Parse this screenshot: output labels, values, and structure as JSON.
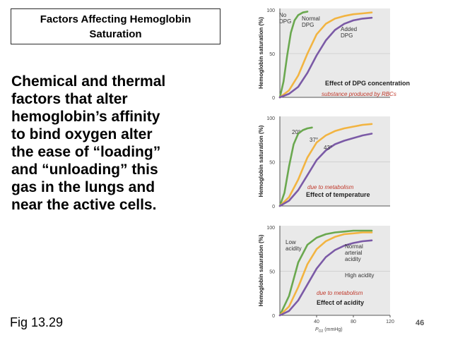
{
  "slide": {
    "title_line1": "Factors Affecting Hemoglobin",
    "title_line2": "Saturation",
    "body_lines": [
      "Chemical and thermal",
      "factors that alter",
      "hemoglobin’s affinity",
      "to bind oxygen alter",
      "the ease of “loading”",
      "and “unloading” this",
      "gas in the lungs and",
      "near the active cells."
    ],
    "figure_label": "Fig 13.29",
    "page_number": "46"
  },
  "colors": {
    "green": "#6aa84f",
    "orange": "#f2b441",
    "purple": "#7b5aa6",
    "panel_bg": "#e9e9e9",
    "note_red": "#c0392b"
  },
  "chart_data": [
    {
      "type": "line",
      "ylabel": "Hemoglobin saturation (%)",
      "yticks": [
        "100",
        "50",
        "0"
      ],
      "ylim": [
        0,
        100
      ],
      "xlim": [
        0,
        120
      ],
      "caption": "Effect of DPG concentration",
      "note": "substance produced by RBCs",
      "series": [
        {
          "name": "No DPG",
          "color": "#6aa84f",
          "x": [
            0,
            4,
            8,
            12,
            16,
            20,
            25,
            30
          ],
          "y": [
            0,
            18,
            48,
            74,
            88,
            94,
            97,
            98
          ]
        },
        {
          "name": "Normal DPG",
          "color": "#f2b441",
          "x": [
            0,
            10,
            20,
            30,
            40,
            50,
            60,
            70,
            80,
            90,
            100
          ],
          "y": [
            0,
            8,
            25,
            50,
            72,
            84,
            90,
            93,
            95,
            96,
            97
          ]
        },
        {
          "name": "Added DPG",
          "color": "#7b5aa6",
          "x": [
            0,
            10,
            20,
            30,
            40,
            50,
            60,
            70,
            80,
            90,
            100
          ],
          "y": [
            0,
            4,
            12,
            28,
            48,
            65,
            77,
            84,
            88,
            90,
            91
          ]
        }
      ],
      "labels": [
        "No DPG",
        "Normal DPG",
        "Added DPG"
      ]
    },
    {
      "type": "line",
      "ylabel": "Hemoglobin saturation (%)",
      "yticks": [
        "100",
        "50",
        "0"
      ],
      "ylim": [
        0,
        100
      ],
      "xlim": [
        0,
        120
      ],
      "caption": "Effect of temperature",
      "note": "due to metabolism",
      "series": [
        {
          "name": "20°",
          "color": "#6aa84f",
          "x": [
            0,
            5,
            10,
            15,
            20,
            25,
            30,
            35
          ],
          "y": [
            0,
            15,
            45,
            70,
            82,
            86,
            88,
            89
          ]
        },
        {
          "name": "37°",
          "color": "#f2b441",
          "x": [
            0,
            10,
            20,
            30,
            40,
            50,
            60,
            70,
            80,
            90,
            100
          ],
          "y": [
            0,
            10,
            30,
            55,
            72,
            80,
            85,
            88,
            90,
            92,
            93
          ]
        },
        {
          "name": "43°",
          "color": "#7b5aa6",
          "x": [
            0,
            10,
            20,
            30,
            40,
            50,
            60,
            70,
            80,
            90,
            100
          ],
          "y": [
            0,
            6,
            18,
            35,
            52,
            63,
            70,
            74,
            77,
            80,
            82
          ]
        }
      ],
      "labels": [
        "20°",
        "37°",
        "43°"
      ]
    },
    {
      "type": "line",
      "ylabel": "Hemoglobin saturation (%)",
      "yticks": [
        "100",
        "50",
        "0"
      ],
      "ylim": [
        0,
        100
      ],
      "xlim": [
        0,
        120
      ],
      "xticks": [
        "40",
        "80",
        "120"
      ],
      "xlabel": "P",
      "xlabel_sub": "O2",
      "xlabel_unit": "(mmHg)",
      "caption": "Effect of acidity",
      "note": "due to metabolism",
      "series": [
        {
          "name": "Low acidity",
          "color": "#6aa84f",
          "x": [
            0,
            10,
            20,
            30,
            40,
            50,
            60,
            70,
            80,
            90,
            100
          ],
          "y": [
            0,
            22,
            60,
            80,
            88,
            92,
            94,
            95,
            96,
            96,
            96
          ]
        },
        {
          "name": "Normal arterial acidity",
          "color": "#f2b441",
          "x": [
            0,
            10,
            20,
            30,
            40,
            50,
            60,
            70,
            80,
            90,
            100
          ],
          "y": [
            0,
            10,
            32,
            58,
            75,
            84,
            89,
            92,
            93,
            94,
            94
          ]
        },
        {
          "name": "High acidity",
          "color": "#7b5aa6",
          "x": [
            0,
            10,
            20,
            30,
            40,
            50,
            60,
            70,
            80,
            90,
            100
          ],
          "y": [
            0,
            5,
            17,
            35,
            53,
            66,
            74,
            79,
            82,
            84,
            85
          ]
        }
      ],
      "labels": [
        "Low acidity",
        "Normal arterial acidity",
        "High acidity"
      ]
    }
  ]
}
